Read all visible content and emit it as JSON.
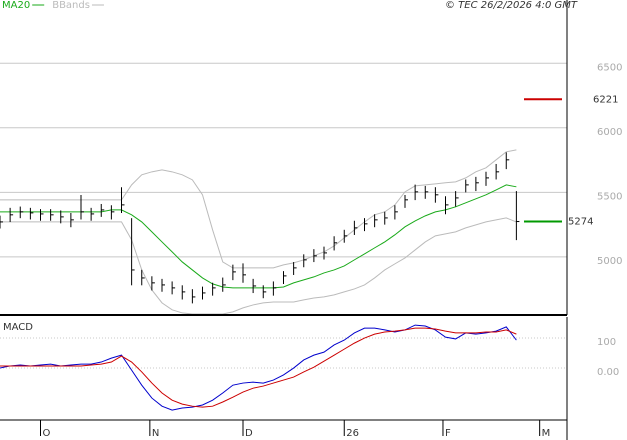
{
  "chart_data": [
    {
      "type": "ohlc",
      "credit": "© TEC 26/2/2026 4:0 GMT",
      "bar_color": "#000000",
      "high": [
        5320,
        5380,
        5390,
        5380,
        5370,
        5370,
        5360,
        5340,
        5480,
        5380,
        5410,
        5400,
        5540,
        5300,
        4900,
        4850,
        4830,
        4810,
        4780,
        4750,
        4770,
        4800,
        4840,
        4940,
        4950,
        4830,
        4780,
        4810,
        4890,
        4960,
        5020,
        5060,
        5080,
        5160,
        5210,
        5280,
        5300,
        5330,
        5350,
        5400,
        5480,
        5560,
        5550,
        5540,
        5470,
        5510,
        5600,
        5620,
        5660,
        5720,
        5810,
        5510
      ],
      "low": [
        5220,
        5270,
        5300,
        5290,
        5280,
        5280,
        5260,
        5230,
        5290,
        5280,
        5310,
        5290,
        5340,
        4780,
        4780,
        4740,
        4730,
        4710,
        4670,
        4640,
        4670,
        4700,
        4730,
        4820,
        4800,
        4720,
        4680,
        4700,
        4790,
        4860,
        4920,
        4960,
        4980,
        5050,
        5110,
        5170,
        5200,
        5230,
        5250,
        5290,
        5380,
        5440,
        5450,
        5420,
        5330,
        5390,
        5500,
        5510,
        5550,
        5600,
        5680,
        5130
      ],
      "close": [
        5271,
        5326,
        5349,
        5341,
        5333,
        5326,
        5310,
        5287,
        5349,
        5333,
        5364,
        5349,
        5403,
        4899,
        4837,
        4799,
        4783,
        4760,
        4729,
        4690,
        4721,
        4760,
        4783,
        4884,
        4861,
        4775,
        4729,
        4760,
        4853,
        4915,
        4977,
        5008,
        5031,
        5109,
        5163,
        5225,
        5256,
        5287,
        5302,
        5349,
        5442,
        5504,
        5504,
        5481,
        5403,
        5457,
        5558,
        5574,
        5612,
        5659,
        5752,
        5274
      ],
      "series": [
        {
          "name": "MA20",
          "color": "#1aaa1a",
          "values": [
            5349,
            5349,
            5349,
            5349,
            5349,
            5349,
            5349,
            5349,
            5349,
            5349,
            5349,
            5364,
            5364,
            5326,
            5271,
            5194,
            5116,
            5039,
            4961,
            4899,
            4837,
            4791,
            4767,
            4760,
            4760,
            4760,
            4760,
            4760,
            4767,
            4799,
            4822,
            4845,
            4876,
            4899,
            4930,
            4977,
            5023,
            5070,
            5116,
            5171,
            5233,
            5279,
            5318,
            5349,
            5364,
            5388,
            5419,
            5450,
            5481,
            5519,
            5558,
            5543
          ]
        },
        {
          "name": "BBands",
          "color": "#bbbbbb",
          "values": [
            5442,
            5442,
            5442,
            5442,
            5442,
            5442,
            5442,
            5442,
            5442,
            5442,
            5442,
            5442,
            5442,
            5558,
            5636,
            5659,
            5674,
            5659,
            5636,
            5597,
            5481,
            5209,
            4961,
            4915,
            4915,
            4915,
            4915,
            4915,
            4938,
            4954,
            4977,
            5008,
            5039,
            5085,
            5147,
            5209,
            5271,
            5326,
            5349,
            5403,
            5504,
            5550,
            5558,
            5566,
            5574,
            5581,
            5612,
            5659,
            5690,
            5752,
            5814,
            5829
          ],
          "lower": [
            5271,
            5271,
            5271,
            5271,
            5271,
            5271,
            5271,
            5271,
            5271,
            5271,
            5271,
            5271,
            5271,
            5132,
            4899,
            4744,
            4644,
            4590,
            4566,
            4558,
            4558,
            4558,
            4558,
            4574,
            4605,
            4628,
            4644,
            4651,
            4651,
            4651,
            4667,
            4682,
            4690,
            4706,
            4729,
            4752,
            4783,
            4837,
            4899,
            4946,
            4992,
            5054,
            5116,
            5163,
            5178,
            5194,
            5225,
            5248,
            5271,
            5287,
            5302,
            5271
          ]
        }
      ],
      "reference_lines": [
        {
          "value": 6221,
          "color": "#cc0000"
        },
        {
          "value": 5274,
          "color": "#009900"
        }
      ],
      "xlim": [
        0,
        56
      ],
      "ylim": [
        4550,
        6990
      ],
      "yticks": [
        5000,
        5500,
        6000,
        6500
      ],
      "grid": true
    },
    {
      "type": "line",
      "title": "MACD",
      "series": [
        {
          "color": "#0000cc",
          "values": [
            0,
            7,
            10,
            7,
            10,
            13,
            7,
            10,
            13,
            13,
            20,
            33,
            43,
            -7,
            -57,
            -100,
            -127,
            -140,
            -133,
            -130,
            -123,
            -107,
            -83,
            -57,
            -50,
            -47,
            -50,
            -40,
            -23,
            0,
            27,
            43,
            53,
            77,
            93,
            117,
            133,
            133,
            127,
            120,
            127,
            143,
            140,
            127,
            103,
            97,
            117,
            113,
            117,
            123,
            137,
            93
          ]
        },
        {
          "color": "#cc0000",
          "values": [
            7,
            7,
            7,
            7,
            7,
            7,
            7,
            7,
            7,
            10,
            13,
            20,
            40,
            20,
            -13,
            -50,
            -83,
            -107,
            -120,
            -127,
            -130,
            -127,
            -113,
            -97,
            -80,
            -67,
            -60,
            -50,
            -40,
            -30,
            -13,
            3,
            23,
            43,
            63,
            83,
            100,
            113,
            120,
            123,
            127,
            133,
            133,
            130,
            123,
            117,
            117,
            117,
            120,
            120,
            127,
            113
          ]
        }
      ],
      "xlim": [
        0,
        56
      ],
      "xticks": [
        {
          "value": 4,
          "label": "O"
        },
        {
          "value": 14.8,
          "label": "N"
        },
        {
          "value": 24,
          "label": "D"
        },
        {
          "value": 34,
          "label": "26"
        },
        {
          "value": 43.75,
          "label": "F"
        },
        {
          "value": 53.3,
          "label": "M"
        }
      ],
      "ylim": [
        -173,
        170
      ],
      "yticks": [
        {
          "value": 0,
          "label": "0.00"
        },
        100
      ],
      "grid": true
    }
  ]
}
